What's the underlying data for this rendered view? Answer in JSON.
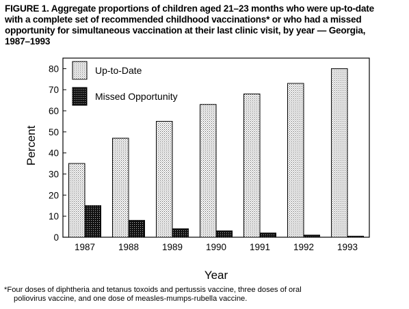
{
  "figure": {
    "title_lines": [
      "FIGURE 1. Aggregate proportions of children aged 21–23 months who were up-to-date",
      "with a complete set of recommended childhood vaccinations* or who had a missed",
      "opportunity for simultaneous vaccination at their last clinic visit, by year — Georgia,",
      "1987–1993"
    ],
    "footnote_lines": [
      "*Four doses of diphtheria and tetanus toxoids and pertussis vaccine, three doses of oral",
      "poliovirus vaccine, and one dose of measles-mumps-rubella vaccine."
    ]
  },
  "chart_data": {
    "type": "bar",
    "categories": [
      "1987",
      "1988",
      "1989",
      "1990",
      "1991",
      "1992",
      "1993"
    ],
    "series": [
      {
        "name": "Up-to-Date",
        "values": [
          35,
          47,
          55,
          63,
          68,
          73,
          80
        ]
      },
      {
        "name": "Missed Opportunity",
        "values": [
          15,
          8,
          4,
          3,
          2,
          1,
          0.5
        ]
      }
    ],
    "xlabel": "Year",
    "ylabel": "Percent",
    "ylim": [
      0,
      85
    ],
    "yticks": [
      0,
      10,
      20,
      30,
      40,
      50,
      60,
      70,
      80
    ],
    "grid": false,
    "legend_position": "top-left",
    "colors": {
      "up_to_date": "#d9d9d9",
      "missed": "#222222",
      "border": "#000000"
    }
  }
}
